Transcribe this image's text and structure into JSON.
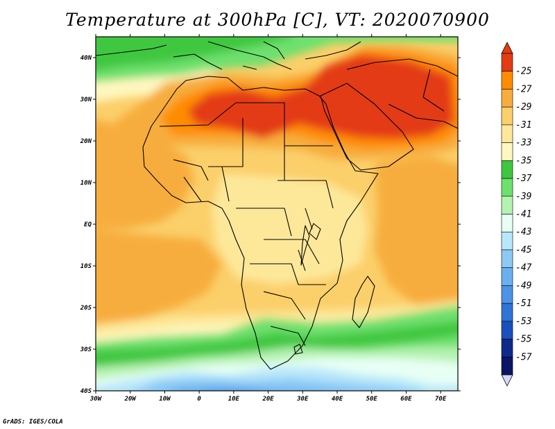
{
  "title": "Temperature at 300hPa [C], VT: 2020070900",
  "credit": "GrADS: IGES/COLA",
  "map": {
    "lon_range": [
      -30,
      75
    ],
    "lat_range": [
      -40,
      45
    ],
    "lon_ticks": [
      {
        "value": -30,
        "label": "30W"
      },
      {
        "value": -20,
        "label": "20W"
      },
      {
        "value": -10,
        "label": "10W"
      },
      {
        "value": 0,
        "label": "0"
      },
      {
        "value": 10,
        "label": "10E"
      },
      {
        "value": 20,
        "label": "20E"
      },
      {
        "value": 30,
        "label": "30E"
      },
      {
        "value": 40,
        "label": "40E"
      },
      {
        "value": 50,
        "label": "50E"
      },
      {
        "value": 60,
        "label": "60E"
      },
      {
        "value": 70,
        "label": "70E"
      }
    ],
    "lat_ticks": [
      {
        "value": 40,
        "label": "40N"
      },
      {
        "value": 30,
        "label": "30N"
      },
      {
        "value": 20,
        "label": "20N"
      },
      {
        "value": 10,
        "label": "10N"
      },
      {
        "value": 0,
        "label": "EQ"
      },
      {
        "value": -10,
        "label": "10S"
      },
      {
        "value": -20,
        "label": "20S"
      },
      {
        "value": -30,
        "label": "30S"
      },
      {
        "value": -40,
        "label": "40S"
      }
    ]
  },
  "colorbar": {
    "labels": [
      "-25",
      "-27",
      "-29",
      "-31",
      "-33",
      "-35",
      "-37",
      "-39",
      "-41",
      "-43",
      "-45",
      "-47",
      "-49",
      "-51",
      "-53",
      "-55",
      "-57"
    ],
    "colors": [
      "#e33b12",
      "#ff8c00",
      "#f7ad3e",
      "#fbcf6a",
      "#fde89a",
      "#fff7bf",
      "#3fc73f",
      "#6ee06e",
      "#b5f2b0",
      "#e7fff4",
      "#b7e7fb",
      "#8cc9f5",
      "#6bb0ee",
      "#4d93e6",
      "#2f74d6",
      "#1a4fbe",
      "#0d2a8a",
      "#0a1566"
    ],
    "end_colors": {
      "top": "#e33b12",
      "bottom": "#d8d8f8"
    }
  }
}
